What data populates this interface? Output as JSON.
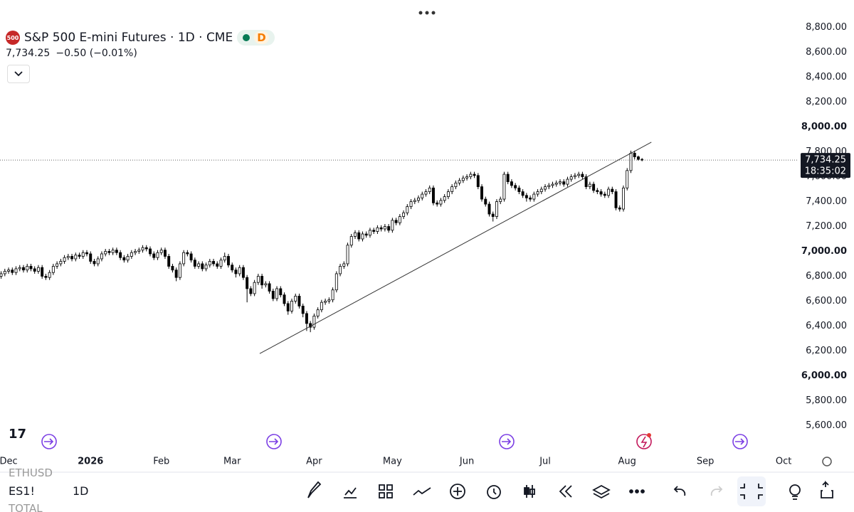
{
  "header": {
    "logo": "500",
    "title": "S&P 500 E-mini Futures · 1D · CME",
    "badge": "D",
    "last": "7,734.25",
    "change": "−0.50 (−0.01%)"
  },
  "chart_data": {
    "type": "candlestick",
    "xlim": [
      -0.3,
      213.6
    ],
    "ylim": [
      5390,
      8850
    ],
    "xticks": [
      {
        "value": 2,
        "label": "Dec"
      },
      {
        "value": 24,
        "label": "2026"
      },
      {
        "value": 43,
        "label": "Feb"
      },
      {
        "value": 62,
        "label": "Mar"
      },
      {
        "value": 84,
        "label": "Apr"
      },
      {
        "value": 105,
        "label": "May"
      },
      {
        "value": 125,
        "label": "Jun"
      },
      {
        "value": 146,
        "label": "Jul"
      },
      {
        "value": 168,
        "label": "Aug"
      },
      {
        "value": 189,
        "label": "Sep"
      },
      {
        "value": 210,
        "label": "Oct"
      }
    ],
    "yticks": [
      {
        "value": 5600,
        "label": "5,600.00"
      },
      {
        "value": 5800,
        "label": "5,800.00"
      },
      {
        "value": 6000,
        "label": "6,000.00"
      },
      {
        "value": 6200,
        "label": "6,200.00"
      },
      {
        "value": 6400,
        "label": "6,400.00"
      },
      {
        "value": 6600,
        "label": "6,600.00"
      },
      {
        "value": 6800,
        "label": "6,800.00"
      },
      {
        "value": 7000,
        "label": "7,000.00"
      },
      {
        "value": 7200,
        "label": "7,200.00"
      },
      {
        "value": 7400,
        "label": "7,400.00"
      },
      {
        "value": 7600,
        "label": "7,600.00"
      },
      {
        "value": 7800,
        "label": "7,800.00"
      },
      {
        "value": 8000,
        "label": "8,000.00"
      },
      {
        "value": 8200,
        "label": "8,200.00"
      },
      {
        "value": 8400,
        "label": "8,400.00"
      },
      {
        "value": 8600,
        "label": "8,600.00"
      },
      {
        "value": 8800,
        "label": "8,800.00"
      }
    ],
    "up_color": "#ffffff",
    "down_color": "#000000",
    "border_color": "#000000",
    "price_line": {
      "value": 7734.25,
      "label": "7,734.25",
      "countdown": "18:35:02"
    },
    "trendline": {
      "start": [
        69.4,
        6178
      ],
      "end": [
        174.5,
        7878
      ]
    },
    "candles": [
      [
        6800,
        6840,
        6780,
        6820
      ],
      [
        6820,
        6860,
        6800,
        6840
      ],
      [
        6840,
        6870,
        6820,
        6850
      ],
      [
        6850,
        6870,
        6810,
        6830
      ],
      [
        6830,
        6880,
        6810,
        6860
      ],
      [
        6860,
        6890,
        6840,
        6870
      ],
      [
        6870,
        6890,
        6830,
        6850
      ],
      [
        6850,
        6900,
        6830,
        6880
      ],
      [
        6880,
        6900,
        6840,
        6860
      ],
      [
        6860,
        6880,
        6820,
        6840
      ],
      [
        6840,
        6890,
        6820,
        6870
      ],
      [
        6870,
        6890,
        6780,
        6800
      ],
      [
        6800,
        6820,
        6770,
        6790
      ],
      [
        6790,
        6850,
        6770,
        6830
      ],
      [
        6830,
        6900,
        6810,
        6880
      ],
      [
        6880,
        6920,
        6860,
        6900
      ],
      [
        6900,
        6940,
        6880,
        6920
      ],
      [
        6920,
        6970,
        6900,
        6950
      ],
      [
        6950,
        6980,
        6930,
        6960
      ],
      [
        6960,
        6980,
        6920,
        6940
      ],
      [
        6940,
        6990,
        6920,
        6970
      ],
      [
        6970,
        6990,
        6940,
        6960
      ],
      [
        6960,
        7010,
        6940,
        6990
      ],
      [
        6990,
        7010,
        6960,
        6980
      ],
      [
        6980,
        7000,
        6900,
        6920
      ],
      [
        6920,
        6940,
        6880,
        6900
      ],
      [
        6900,
        6960,
        6880,
        6940
      ],
      [
        6940,
        7000,
        6920,
        6980
      ],
      [
        6980,
        7020,
        6960,
        7000
      ],
      [
        7000,
        7020,
        6970,
        6990
      ],
      [
        6990,
        7030,
        6970,
        7010
      ],
      [
        7010,
        7030,
        6970,
        6990
      ],
      [
        6990,
        7010,
        6930,
        6950
      ],
      [
        6950,
        6970,
        6910,
        6930
      ],
      [
        6930,
        6980,
        6910,
        6960
      ],
      [
        6960,
        7010,
        6940,
        6990
      ],
      [
        6990,
        7020,
        6970,
        7000
      ],
      [
        7000,
        7030,
        6980,
        7010
      ],
      [
        7010,
        7050,
        6990,
        7030
      ],
      [
        7030,
        7050,
        7000,
        7020
      ],
      [
        7020,
        7040,
        6960,
        6980
      ],
      [
        6980,
        7000,
        6930,
        6950
      ],
      [
        6950,
        7010,
        6930,
        6990
      ],
      [
        6990,
        7030,
        6970,
        7010
      ],
      [
        7010,
        7030,
        6940,
        6960
      ],
      [
        6960,
        6980,
        6860,
        6880
      ],
      [
        6880,
        6900,
        6830,
        6850
      ],
      [
        6850,
        6870,
        6760,
        6790
      ],
      [
        6790,
        6920,
        6770,
        6900
      ],
      [
        6900,
        7010,
        6880,
        6990
      ],
      [
        6990,
        7010,
        6960,
        6980
      ],
      [
        6980,
        7000,
        6910,
        6930
      ],
      [
        6930,
        6950,
        6860,
        6880
      ],
      [
        6880,
        6920,
        6860,
        6900
      ],
      [
        6900,
        6920,
        6840,
        6860
      ],
      [
        6860,
        6910,
        6840,
        6890
      ],
      [
        6890,
        6940,
        6870,
        6920
      ],
      [
        6920,
        6940,
        6880,
        6900
      ],
      [
        6900,
        6920,
        6860,
        6880
      ],
      [
        6880,
        6950,
        6860,
        6930
      ],
      [
        6930,
        6990,
        6910,
        6960
      ],
      [
        6960,
        6980,
        6870,
        6890
      ],
      [
        6890,
        6910,
        6830,
        6850
      ],
      [
        6850,
        6870,
        6790,
        6820
      ],
      [
        6820,
        6890,
        6800,
        6870
      ],
      [
        6870,
        6890,
        6770,
        6790
      ],
      [
        6790,
        6810,
        6590,
        6700
      ],
      [
        6700,
        6720,
        6640,
        6660
      ],
      [
        6660,
        6770,
        6640,
        6750
      ],
      [
        6750,
        6820,
        6730,
        6800
      ],
      [
        6800,
        6820,
        6700,
        6730
      ],
      [
        6730,
        6760,
        6710,
        6740
      ],
      [
        6740,
        6760,
        6660,
        6680
      ],
      [
        6680,
        6700,
        6600,
        6620
      ],
      [
        6620,
        6720,
        6600,
        6700
      ],
      [
        6700,
        6720,
        6630,
        6650
      ],
      [
        6650,
        6670,
        6560,
        6580
      ],
      [
        6580,
        6600,
        6490,
        6520
      ],
      [
        6520,
        6620,
        6500,
        6600
      ],
      [
        6600,
        6660,
        6580,
        6640
      ],
      [
        6640,
        6660,
        6540,
        6560
      ],
      [
        6560,
        6580,
        6470,
        6500
      ],
      [
        6500,
        6520,
        6360,
        6420
      ],
      [
        6420,
        6440,
        6350,
        6390
      ],
      [
        6390,
        6500,
        6370,
        6480
      ],
      [
        6480,
        6550,
        6460,
        6530
      ],
      [
        6530,
        6610,
        6510,
        6590
      ],
      [
        6590,
        6620,
        6570,
        6600
      ],
      [
        6600,
        6630,
        6580,
        6610
      ],
      [
        6610,
        6710,
        6590,
        6690
      ],
      [
        6690,
        6840,
        6670,
        6820
      ],
      [
        6820,
        6900,
        6800,
        6880
      ],
      [
        6880,
        6920,
        6860,
        6900
      ],
      [
        6900,
        7070,
        6880,
        7050
      ],
      [
        7050,
        7140,
        7030,
        7120
      ],
      [
        7120,
        7170,
        7100,
        7150
      ],
      [
        7150,
        7170,
        7080,
        7100
      ],
      [
        7100,
        7160,
        7080,
        7140
      ],
      [
        7140,
        7160,
        7110,
        7130
      ],
      [
        7130,
        7190,
        7110,
        7170
      ],
      [
        7170,
        7190,
        7140,
        7160
      ],
      [
        7160,
        7210,
        7140,
        7190
      ],
      [
        7190,
        7210,
        7160,
        7180
      ],
      [
        7180,
        7220,
        7160,
        7200
      ],
      [
        7200,
        7220,
        7150,
        7170
      ],
      [
        7170,
        7270,
        7150,
        7250
      ],
      [
        7250,
        7270,
        7210,
        7230
      ],
      [
        7230,
        7300,
        7210,
        7280
      ],
      [
        7280,
        7330,
        7260,
        7310
      ],
      [
        7310,
        7380,
        7290,
        7360
      ],
      [
        7360,
        7420,
        7340,
        7400
      ],
      [
        7400,
        7430,
        7380,
        7410
      ],
      [
        7410,
        7450,
        7390,
        7430
      ],
      [
        7430,
        7480,
        7410,
        7460
      ],
      [
        7460,
        7500,
        7440,
        7480
      ],
      [
        7480,
        7530,
        7460,
        7510
      ],
      [
        7510,
        7530,
        7370,
        7390
      ],
      [
        7390,
        7410,
        7360,
        7380
      ],
      [
        7380,
        7430,
        7360,
        7410
      ],
      [
        7410,
        7460,
        7390,
        7440
      ],
      [
        7440,
        7500,
        7420,
        7480
      ],
      [
        7480,
        7540,
        7460,
        7520
      ],
      [
        7520,
        7570,
        7500,
        7550
      ],
      [
        7550,
        7590,
        7530,
        7570
      ],
      [
        7570,
        7610,
        7550,
        7590
      ],
      [
        7590,
        7620,
        7570,
        7600
      ],
      [
        7600,
        7640,
        7580,
        7620
      ],
      [
        7620,
        7640,
        7590,
        7610
      ],
      [
        7610,
        7630,
        7500,
        7520
      ],
      [
        7520,
        7540,
        7400,
        7420
      ],
      [
        7420,
        7440,
        7360,
        7380
      ],
      [
        7380,
        7400,
        7280,
        7300
      ],
      [
        7300,
        7320,
        7240,
        7280
      ],
      [
        7280,
        7420,
        7260,
        7400
      ],
      [
        7400,
        7440,
        7380,
        7420
      ],
      [
        7420,
        7640,
        7400,
        7620
      ],
      [
        7620,
        7640,
        7540,
        7560
      ],
      [
        7560,
        7580,
        7510,
        7530
      ],
      [
        7530,
        7550,
        7490,
        7510
      ],
      [
        7510,
        7530,
        7460,
        7480
      ],
      [
        7480,
        7500,
        7430,
        7450
      ],
      [
        7450,
        7470,
        7400,
        7430
      ],
      [
        7430,
        7450,
        7400,
        7420
      ],
      [
        7420,
        7480,
        7400,
        7460
      ],
      [
        7460,
        7500,
        7440,
        7480
      ],
      [
        7480,
        7520,
        7460,
        7500
      ],
      [
        7500,
        7540,
        7480,
        7520
      ],
      [
        7520,
        7550,
        7500,
        7530
      ],
      [
        7530,
        7560,
        7510,
        7540
      ],
      [
        7540,
        7570,
        7520,
        7550
      ],
      [
        7550,
        7580,
        7530,
        7560
      ],
      [
        7560,
        7580,
        7520,
        7540
      ],
      [
        7540,
        7600,
        7520,
        7580
      ],
      [
        7580,
        7620,
        7560,
        7600
      ],
      [
        7600,
        7630,
        7580,
        7610
      ],
      [
        7610,
        7640,
        7590,
        7620
      ],
      [
        7620,
        7640,
        7580,
        7600
      ],
      [
        7600,
        7620,
        7500,
        7520
      ],
      [
        7520,
        7560,
        7500,
        7540
      ],
      [
        7540,
        7560,
        7470,
        7490
      ],
      [
        7490,
        7510,
        7460,
        7480
      ],
      [
        7480,
        7500,
        7440,
        7460
      ],
      [
        7460,
        7480,
        7430,
        7450
      ],
      [
        7450,
        7520,
        7430,
        7500
      ],
      [
        7500,
        7520,
        7460,
        7480
      ],
      [
        7480,
        7500,
        7330,
        7350
      ],
      [
        7350,
        7370,
        7320,
        7340
      ],
      [
        7340,
        7530,
        7320,
        7510
      ],
      [
        7510,
        7670,
        7490,
        7650
      ],
      [
        7650,
        7810,
        7630,
        7790
      ],
      [
        7790,
        7810,
        7740,
        7760
      ],
      [
        7760,
        7770,
        7730,
        7740
      ],
      [
        7740,
        7750,
        7725,
        7734.25
      ]
    ]
  },
  "toolbar": {
    "symbol": "ES1!",
    "interval": "1D",
    "prev_symbol": "ETHUSD",
    "next_symbol": "TOTAL"
  }
}
